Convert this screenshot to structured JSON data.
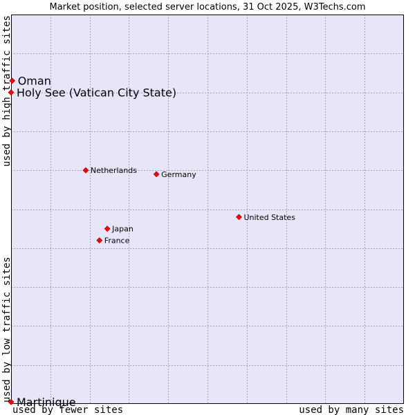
{
  "chart_data": {
    "type": "scatter",
    "title": "Market position, selected server locations, 31 Oct 2025, W3Techs.com",
    "xlabel_left": "used by fewer sites",
    "xlabel_right": "used by many sites",
    "ylabel_low": "used by low traffic sites",
    "ylabel_high": "used by high traffic sites",
    "xlim": [
      0,
      100
    ],
    "ylim": [
      0,
      100
    ],
    "grid": true,
    "colors": {
      "background": "#e6e6f8",
      "border": "#000000",
      "marker": "#ff0000",
      "marker_edge": "#990000"
    },
    "points": [
      {
        "label": "Oman",
        "x": 0.3,
        "y": 83,
        "size": "large"
      },
      {
        "label": "Holy See (Vatican City State)",
        "x": 0,
        "y": 80,
        "size": "large"
      },
      {
        "label": "Netherlands",
        "x": 19,
        "y": 60,
        "size": "small"
      },
      {
        "label": "Germany",
        "x": 37,
        "y": 59,
        "size": "small"
      },
      {
        "label": "United States",
        "x": 58,
        "y": 48,
        "size": "small"
      },
      {
        "label": "Japan",
        "x": 24.5,
        "y": 45,
        "size": "small"
      },
      {
        "label": "France",
        "x": 22.5,
        "y": 42,
        "size": "small"
      },
      {
        "label": "Martinique",
        "x": 0,
        "y": 0.5,
        "size": "large"
      }
    ]
  }
}
